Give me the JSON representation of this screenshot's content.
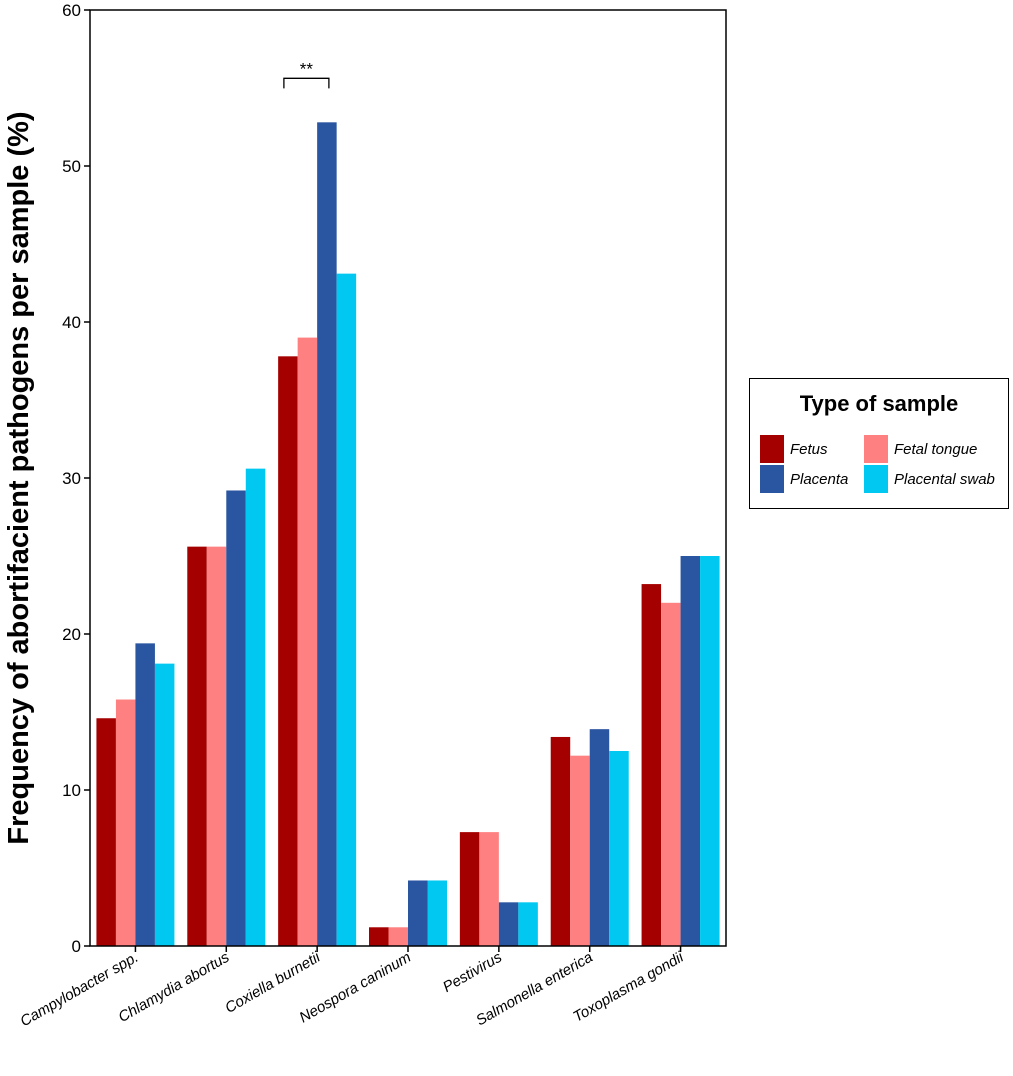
{
  "chart_data": {
    "type": "bar",
    "title": "",
    "xlabel": "",
    "ylabel": "Frequency of abortifacient pathogens per sample (%)",
    "ylim": [
      0,
      60
    ],
    "yticks": [
      0,
      10,
      20,
      30,
      40,
      50,
      60
    ],
    "categories": [
      "Campylobacter spp.",
      "Chlamydia abortus",
      "Coxiella burnetii",
      "Neospora caninum",
      "Pestivirus",
      "Salmonella enterica",
      "Toxoplasma gondii"
    ],
    "series": [
      {
        "name": "Fetus",
        "color": "#A50000",
        "values": [
          14.6,
          25.6,
          37.8,
          1.2,
          7.3,
          13.4,
          23.2
        ]
      },
      {
        "name": "Fetal tongue",
        "color": "#FF8080",
        "values": [
          15.8,
          25.6,
          39.0,
          1.2,
          7.3,
          12.2,
          22.0
        ]
      },
      {
        "name": "Placenta",
        "color": "#2A55A0",
        "values": [
          19.4,
          29.2,
          52.8,
          4.2,
          2.8,
          13.9,
          25.0
        ]
      },
      {
        "name": "Placental swab",
        "color": "#00C8F0",
        "values": [
          18.1,
          30.6,
          43.1,
          4.2,
          2.8,
          12.5,
          25.0
        ]
      }
    ],
    "annotations": [
      {
        "text": "**",
        "category": "Coxiella burnetii",
        "from_series": "Fetus",
        "to_series": "Placenta"
      }
    ],
    "legend": {
      "title": "Type of sample",
      "placement": "right"
    }
  }
}
